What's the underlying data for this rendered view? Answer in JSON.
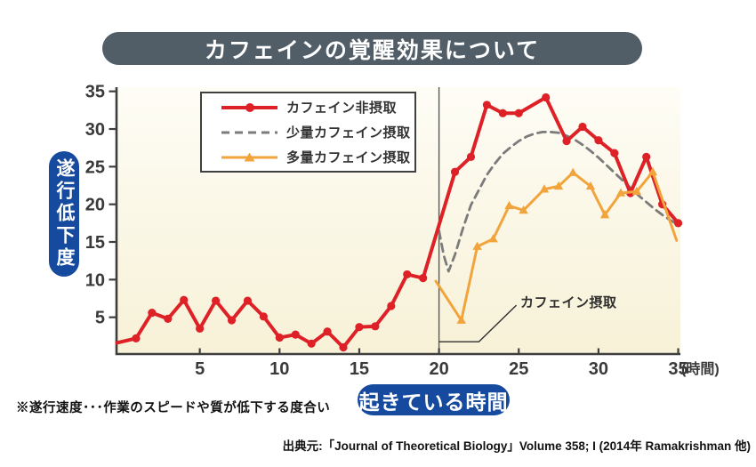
{
  "title_bar_color": "#515E68",
  "badge_color": "#164A9E",
  "y_axis_badge": "遂行低下度",
  "x_axis_badge": "起きている時間",
  "footnote": "※遂行速度･･･作業のスピードや質が低下する度合い",
  "source": "出典元:「Journal of Theoretical Biology」Volume 358; I (2014年 Ramakrishman 他)",
  "chart_data": {
    "type": "line",
    "title": "カフェインの覚醒効果について",
    "xlabel": "起きている時間",
    "ylabel": "遂行低下度",
    "x_unit": "(時間)",
    "x_ticks": [
      5,
      10,
      15,
      20,
      25,
      30,
      35
    ],
    "y_ticks": [
      5,
      10,
      15,
      20,
      25,
      30,
      35
    ],
    "xlim": [
      0,
      35
    ],
    "ylim": [
      0,
      35
    ],
    "grid": false,
    "legend_position": "top-left",
    "event_line_x": 20,
    "annotation": {
      "label": "カフェイン摂取",
      "line": [
        [
          20,
          1.75
        ],
        [
          22.5,
          1.75
        ],
        [
          24.85,
          6.6
        ]
      ],
      "label_at": [
        25.1,
        6.35
      ]
    },
    "series": [
      {
        "name": "カフェイン非摂取",
        "color": "#DD2127",
        "style": "solid",
        "marker": "circle",
        "width": 4,
        "no_marker": [
          0
        ],
        "points": [
          [
            -0.2,
            1.6
          ],
          [
            1,
            2.2
          ],
          [
            2,
            5.6
          ],
          [
            3,
            4.8
          ],
          [
            4,
            7.3
          ],
          [
            5,
            3.5
          ],
          [
            6,
            7.2
          ],
          [
            7,
            4.6
          ],
          [
            8,
            7.2
          ],
          [
            9,
            5.1
          ],
          [
            10,
            2.3
          ],
          [
            11,
            2.7
          ],
          [
            12,
            1.5
          ],
          [
            13,
            3.1
          ],
          [
            14,
            1.0
          ],
          [
            15,
            3.7
          ],
          [
            16,
            3.8
          ],
          [
            17,
            6.5
          ],
          [
            18,
            10.7
          ],
          [
            19,
            10.2
          ],
          [
            21,
            24.3
          ],
          [
            22,
            26.3
          ],
          [
            23,
            33.2
          ],
          [
            24,
            32.1
          ],
          [
            25,
            32.1
          ],
          [
            26.7,
            34.2
          ],
          [
            28,
            28.4
          ],
          [
            29,
            30.3
          ],
          [
            30,
            28.5
          ],
          [
            31,
            26.8
          ],
          [
            32,
            21.5
          ],
          [
            33,
            26.3
          ],
          [
            34,
            20.0
          ],
          [
            35,
            17.5
          ]
        ]
      },
      {
        "name": "少量カフェイン摂取",
        "color": "#7B7B7B",
        "style": "dashed",
        "marker": "none",
        "width": 2.8,
        "no_marker": [],
        "points": [
          [
            20,
            16.5
          ],
          [
            20.3,
            13.2
          ],
          [
            20.6,
            11.1
          ],
          [
            21,
            13.3
          ],
          [
            21.5,
            16.8
          ],
          [
            22,
            19.9
          ],
          [
            22.5,
            21.9
          ],
          [
            23,
            23.9
          ],
          [
            23.5,
            25.4
          ],
          [
            24,
            26.7
          ],
          [
            24.5,
            27.6
          ],
          [
            25,
            28.4
          ],
          [
            25.5,
            29.0
          ],
          [
            26,
            29.4
          ],
          [
            26.5,
            29.6
          ],
          [
            27,
            29.6
          ],
          [
            27.5,
            29.5
          ],
          [
            28,
            29.1
          ],
          [
            28.5,
            28.6
          ],
          [
            29,
            27.9
          ],
          [
            29.5,
            27.1
          ],
          [
            30,
            26.2
          ],
          [
            30.5,
            25.2
          ],
          [
            31,
            24.2
          ],
          [
            31.5,
            23.2
          ],
          [
            32,
            22.2
          ],
          [
            32.5,
            21.2
          ],
          [
            33,
            20.3
          ],
          [
            33.5,
            19.4
          ],
          [
            34,
            18.6
          ],
          [
            34.5,
            17.9
          ],
          [
            35,
            17.3
          ]
        ]
      },
      {
        "name": "多量カフェイン摂取",
        "color": "#F2A43C",
        "style": "solid",
        "marker": "triangle",
        "width": 3,
        "no_marker": [
          0,
          14
        ],
        "points": [
          [
            19.8,
            9.8
          ],
          [
            21.4,
            4.6
          ],
          [
            22.4,
            14.4
          ],
          [
            23.4,
            15.4
          ],
          [
            24.4,
            19.8
          ],
          [
            25.3,
            19.2
          ],
          [
            26.6,
            22.0
          ],
          [
            27.5,
            22.4
          ],
          [
            28.4,
            24.2
          ],
          [
            29.5,
            22.4
          ],
          [
            30.4,
            18.6
          ],
          [
            31.4,
            21.5
          ],
          [
            32.4,
            21.7
          ],
          [
            33.4,
            24.3
          ],
          [
            34.9,
            15.2
          ]
        ]
      }
    ]
  }
}
